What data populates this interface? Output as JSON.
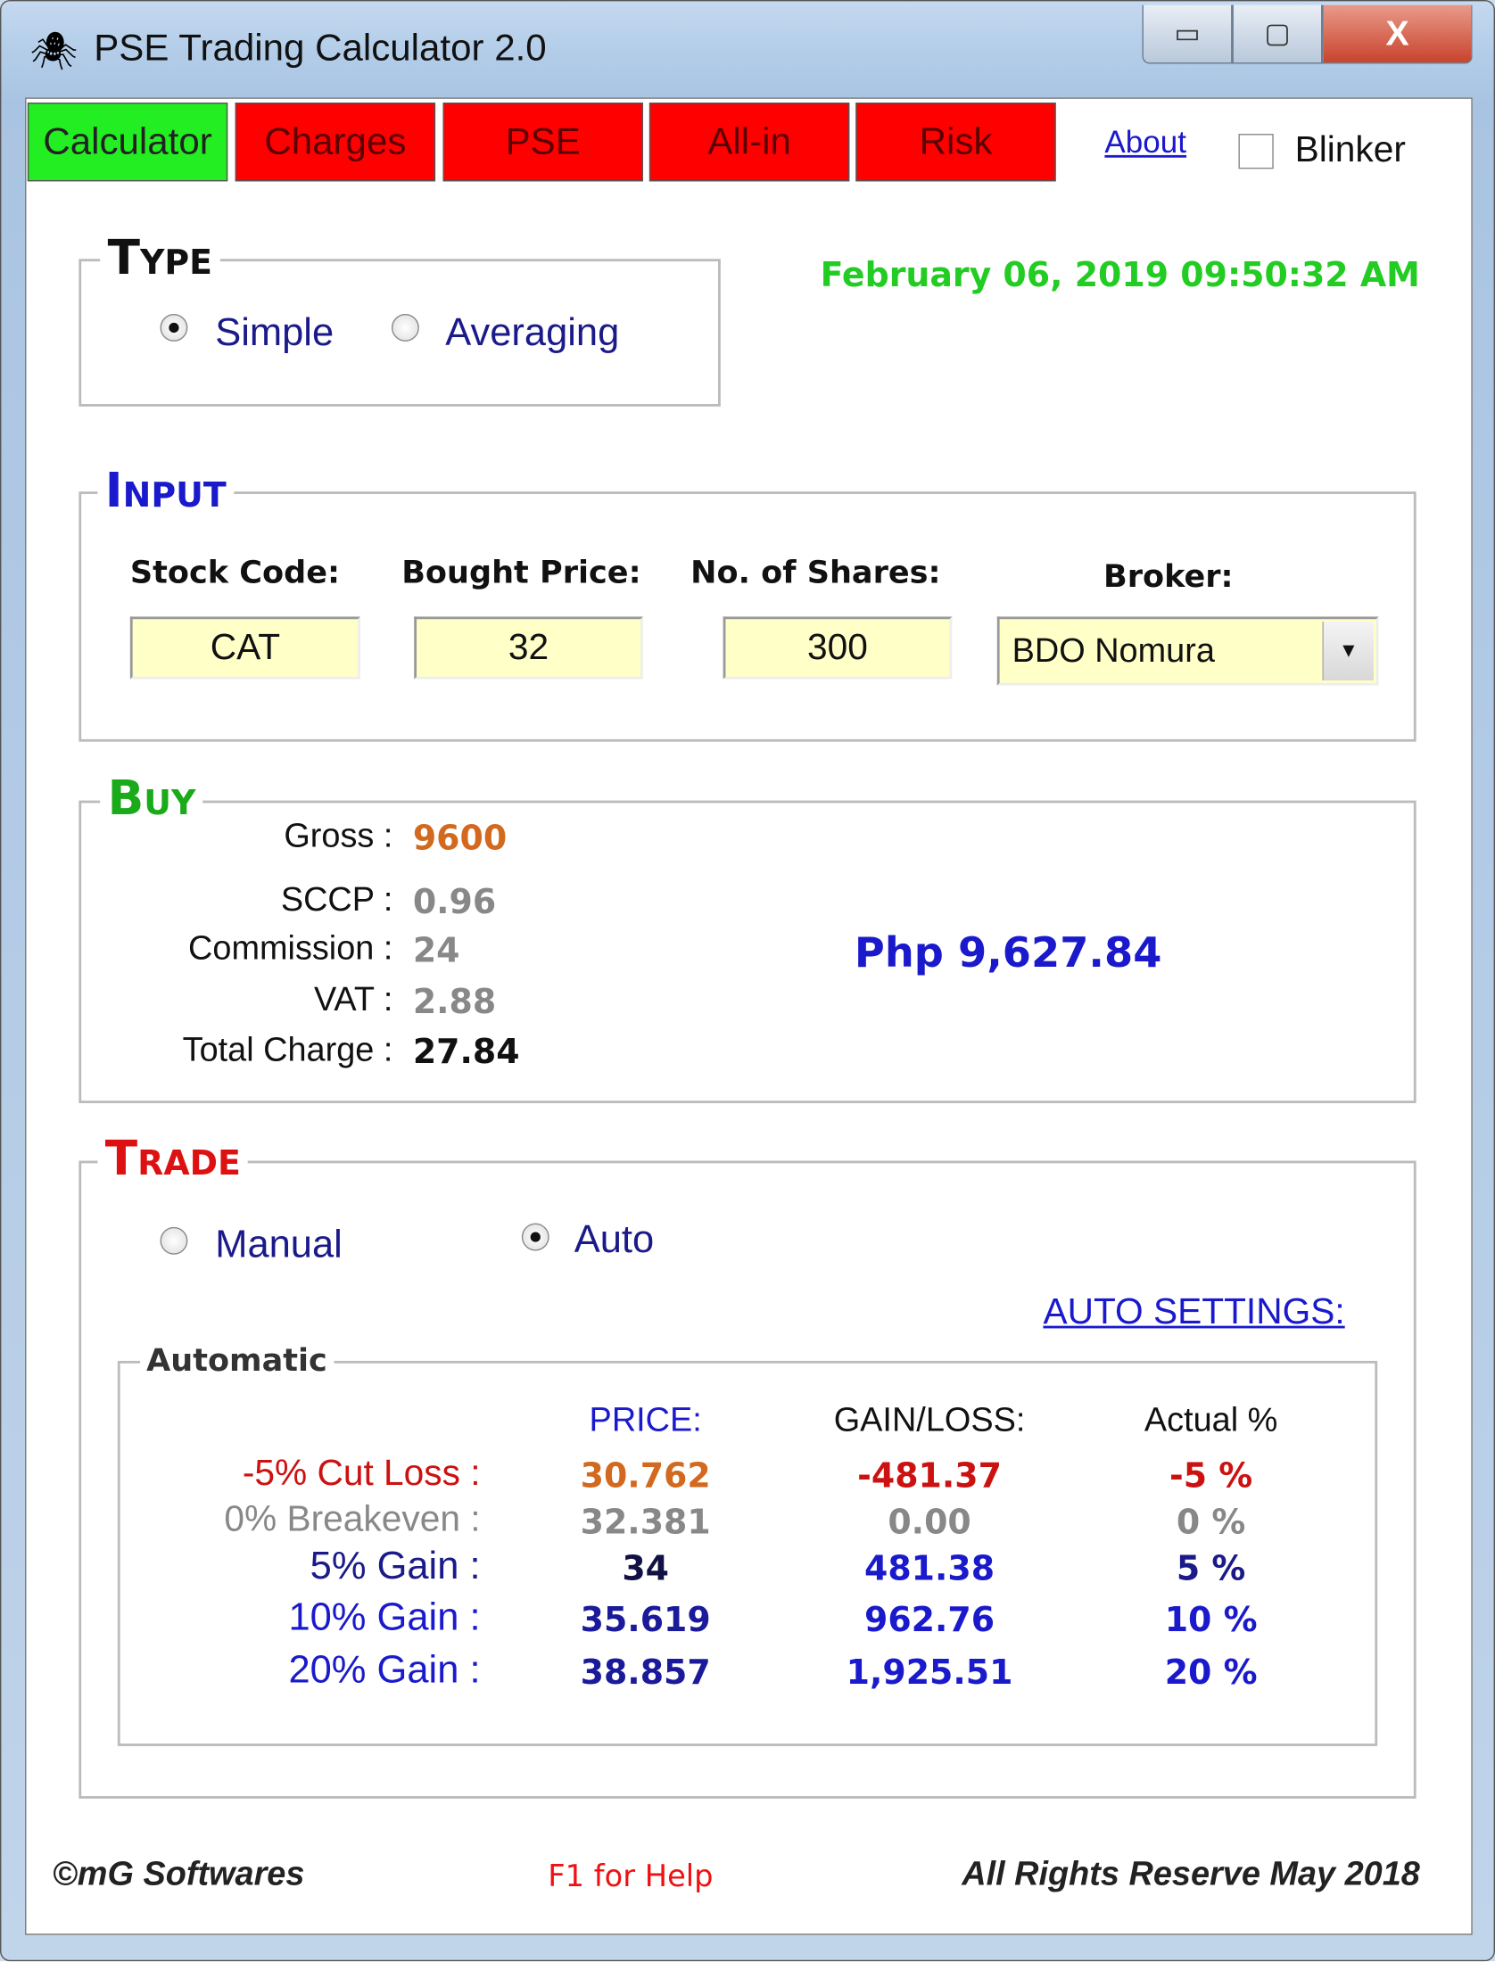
{
  "window": {
    "title": "PSE Trading Calculator 2.0",
    "minimize": "▭",
    "maximize": "▢",
    "close": "X"
  },
  "tabs": [
    {
      "label": "Calculator",
      "active": true
    },
    {
      "label": "Charges"
    },
    {
      "label": "PSE"
    },
    {
      "label": "All-in"
    },
    {
      "label": "Risk"
    }
  ],
  "about_link": "About",
  "blinker": {
    "label": "Blinker",
    "checked": false
  },
  "datetime": "February 06, 2019 09:50:32 AM",
  "type": {
    "legend": "Type",
    "options": [
      "Simple",
      "Averaging"
    ],
    "selected": "Simple"
  },
  "input": {
    "legend": "Input",
    "stock_code_label": "Stock Code:",
    "stock_code": "CAT",
    "bought_price_label": "Bought Price:",
    "bought_price": "32",
    "shares_label": "No. of Shares:",
    "shares": "300",
    "broker_label": "Broker:",
    "broker": "BDO Nomura"
  },
  "buy": {
    "legend": "Buy",
    "gross_label": "Gross :",
    "gross": "9600",
    "sccp_label": "SCCP :",
    "sccp": "0.96",
    "commission_label": "Commission :",
    "commission": "24",
    "vat_label": "VAT :",
    "vat": "2.88",
    "total_charge_label": "Total Charge :",
    "total_charge": "27.84",
    "total": "Php 9,627.84"
  },
  "trade": {
    "legend": "Trade",
    "options": [
      "Manual",
      "Auto"
    ],
    "selected": "Auto",
    "auto_settings": "AUTO SETTINGS:",
    "automatic": {
      "legend": "Automatic",
      "headers": [
        "PRICE:",
        "GAIN/LOSS:",
        "Actual %"
      ],
      "rows": [
        {
          "label": "-5% Cut Loss :",
          "price": "30.762",
          "gain_loss": "-481.37",
          "actual": "-5 %"
        },
        {
          "label": "0% Breakeven :",
          "price": "32.381",
          "gain_loss": "0.00",
          "actual": "0 %"
        },
        {
          "label": "5% Gain :",
          "price": "34",
          "gain_loss": "481.38",
          "actual": "5 %"
        },
        {
          "label": "10% Gain :",
          "price": "35.619",
          "gain_loss": "962.76",
          "actual": "10 %"
        },
        {
          "label": "20% Gain :",
          "price": "38.857",
          "gain_loss": "1,925.51",
          "actual": "20 %"
        }
      ]
    }
  },
  "footer": {
    "company": "©mG Softwares",
    "help": "F1 for Help",
    "rights": "All Rights Reserve May 2018"
  },
  "colors": {
    "active_tab": "#22ee22",
    "inactive_tab": "#ff0000",
    "date": "#22cc22",
    "blue": "#1a1acc",
    "loss": "#cc1111"
  }
}
